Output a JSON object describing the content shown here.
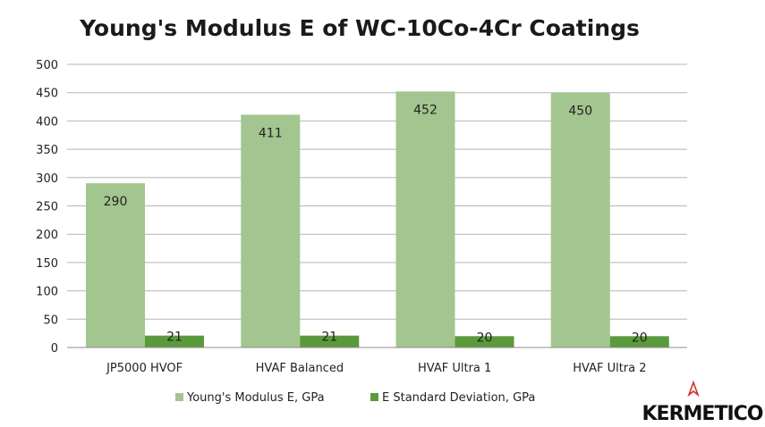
{
  "chart_data": {
    "type": "bar",
    "title": "Young's Modulus E of WC-10Co-4Cr Coatings",
    "xlabel": "",
    "ylabel": "",
    "categories": [
      "JP5000 HVOF",
      "HVAF Balanced",
      "HVAF Ultra 1",
      "HVAF Ultra 2"
    ],
    "series": [
      {
        "name": "Young's Modulus E, GPa",
        "values": [
          290,
          411,
          452,
          450
        ],
        "color": "#a3c58f"
      },
      {
        "name": "E Standard Deviation, GPa",
        "values": [
          21,
          21,
          20,
          20
        ],
        "color": "#5b9a3c"
      }
    ],
    "ylim": [
      0,
      500
    ],
    "yticks": [
      0,
      50,
      100,
      150,
      200,
      250,
      300,
      350,
      400,
      450,
      500
    ],
    "grid": true,
    "legend_position": "bottom"
  },
  "logo": {
    "text": "KERMETICO",
    "accent_color": "#d0312d"
  },
  "colors": {
    "grid": "#b5b5b5",
    "axis": "#8c8c8c"
  }
}
